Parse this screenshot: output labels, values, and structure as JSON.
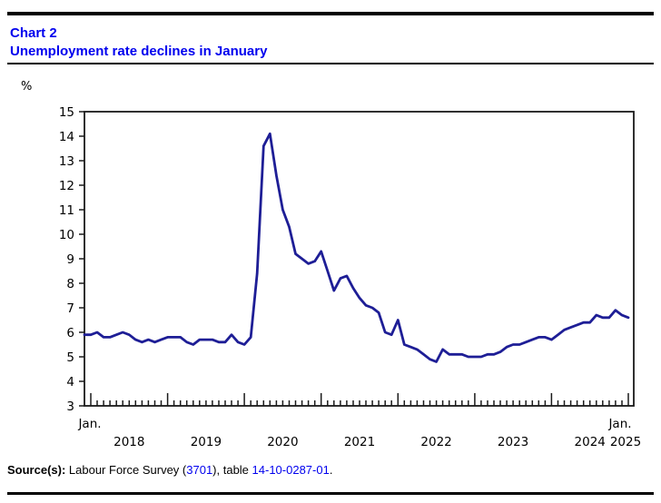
{
  "header": {
    "chart_label": "Chart 2",
    "chart_title": "Unemployment rate declines in January",
    "title_color": "#0000EE"
  },
  "chart_data": {
    "type": "line",
    "title": "Unemployment rate declines in January",
    "unit_label": "%",
    "ylim": [
      3,
      15
    ],
    "ytick_step": 1,
    "grid": false,
    "legend": "none",
    "x_first_tick_label": "Jan.",
    "x_last_tick_label": "Jan.",
    "year_labels": [
      "2018",
      "2019",
      "2020",
      "2021",
      "2022",
      "2023",
      "2024",
      "2025"
    ],
    "line_color": "#1E1E96",
    "axis_color": "#1a1a1a",
    "series": [
      {
        "name": "Unemployment rate (%)",
        "start_month": "2018-01",
        "end_month": "2025-01",
        "frequency": "monthly",
        "values": [
          5.9,
          6.0,
          5.8,
          5.8,
          5.9,
          6.0,
          5.9,
          5.7,
          5.6,
          5.7,
          5.6,
          5.7,
          5.8,
          5.8,
          5.8,
          5.6,
          5.5,
          5.7,
          5.7,
          5.7,
          5.6,
          5.6,
          5.9,
          5.6,
          5.5,
          5.8,
          8.4,
          13.6,
          14.1,
          12.4,
          11.0,
          10.3,
          9.2,
          9.0,
          8.8,
          8.9,
          9.3,
          8.5,
          7.7,
          8.2,
          8.3,
          7.8,
          7.4,
          7.1,
          7.0,
          6.8,
          6.0,
          5.9,
          6.5,
          5.5,
          5.4,
          5.3,
          5.1,
          4.9,
          4.8,
          5.3,
          5.1,
          5.1,
          5.1,
          5.0,
          5.0,
          5.0,
          5.1,
          5.1,
          5.2,
          5.4,
          5.5,
          5.5,
          5.6,
          5.7,
          5.8,
          5.8,
          5.7,
          5.9,
          6.1,
          6.2,
          6.3,
          6.4,
          6.4,
          6.7,
          6.6,
          6.6,
          6.9,
          6.7,
          6.6
        ]
      }
    ]
  },
  "source": {
    "label": "Source(s):",
    "segment1": " Labour Force Survey (",
    "link1": "3701",
    "segment2": "), table ",
    "link2": "14-10-0287-01",
    "segment3": ".",
    "link_color": "#0000EE"
  }
}
